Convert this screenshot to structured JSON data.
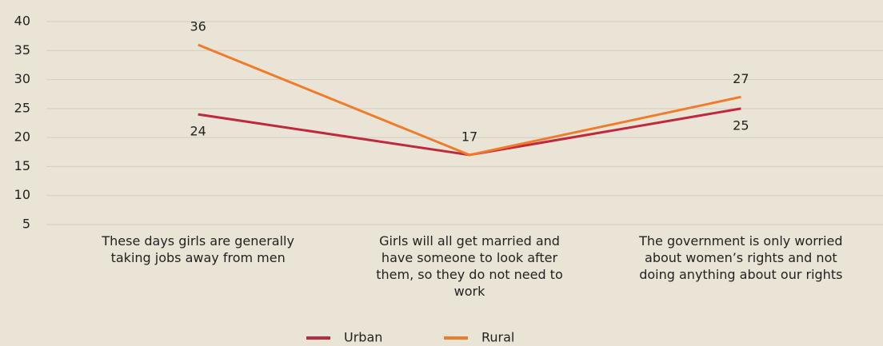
{
  "chart_data": {
    "type": "line",
    "categories": [
      "These days girls are generally taking jobs away from men",
      "Girls will all get married and have someone to look after them, so they do not need to work",
      "The government is only worried about women’s rights and not doing anything about our rights"
    ],
    "series": [
      {
        "name": "Urban",
        "color": "#c0283c",
        "values": [
          24,
          17,
          25
        ],
        "value_labels": [
          "24",
          null,
          "25"
        ]
      },
      {
        "name": "Rural",
        "color": "#f07b2a",
        "values": [
          36,
          17,
          27
        ]
      }
    ],
    "ylim": [
      5,
      40
    ],
    "yticks": [
      5,
      10,
      15,
      20,
      25,
      30,
      35,
      40
    ],
    "grid": true,
    "legend": "bottom"
  }
}
